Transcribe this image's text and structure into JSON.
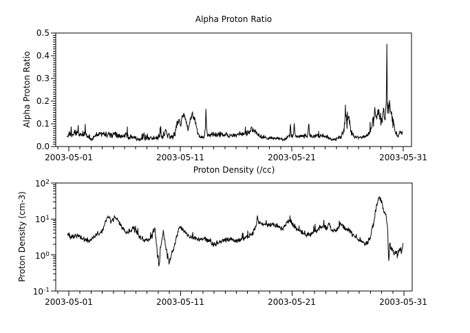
{
  "figure": {
    "background": "#ffffff",
    "line_color": "#000000"
  },
  "chart_data": [
    {
      "type": "line",
      "title": "Alpha Proton Ratio",
      "ylabel": "Alpha Proton Ratio",
      "yscale": "linear",
      "ylim": [
        0.0,
        0.5
      ],
      "xlim_days": [
        -0.17,
        31.74
      ],
      "grid": false,
      "legend": null,
      "y_ticks": [
        {
          "v": 0.0,
          "label": "0.0"
        },
        {
          "v": 0.1,
          "label": "0.1"
        },
        {
          "v": 0.2,
          "label": "0.2"
        },
        {
          "v": 0.3,
          "label": "0.3"
        },
        {
          "v": 0.4,
          "label": "0.4"
        },
        {
          "v": 0.5,
          "label": "0.5"
        }
      ],
      "y_minor_step": 0.01,
      "x_ticks": [
        {
          "day": 1,
          "label": "2003-05-01"
        },
        {
          "day": 11,
          "label": "2003-05-11"
        },
        {
          "day": 21,
          "label": "2003-05-21"
        },
        {
          "day": 31,
          "label": "2003-05-31"
        }
      ],
      "x_minor_step_days": 1,
      "series": [
        {
          "name": "alpha-proton-ratio",
          "color": "#000000",
          "noise_seed": 1234,
          "sample_step_days": 0.03,
          "keypoints_format": [
            "day_of_may_2003",
            "mean_value",
            "noise_amplitude"
          ],
          "keypoints": [
            [
              0.85,
              0.045,
              0.012
            ],
            [
              1.2,
              0.055,
              0.018
            ],
            [
              1.7,
              0.06,
              0.018
            ],
            [
              2.1,
              0.052,
              0.016
            ],
            [
              2.45,
              0.06,
              0.02
            ],
            [
              2.7,
              0.042,
              0.012
            ],
            [
              3.1,
              0.03,
              0.009
            ],
            [
              3.45,
              0.05,
              0.018
            ],
            [
              3.9,
              0.058,
              0.016
            ],
            [
              4.4,
              0.055,
              0.018
            ],
            [
              4.9,
              0.048,
              0.014
            ],
            [
              5.3,
              0.06,
              0.025
            ],
            [
              5.65,
              0.044,
              0.012
            ],
            [
              6.3,
              0.05,
              0.02
            ],
            [
              6.9,
              0.042,
              0.013
            ],
            [
              7.4,
              0.03,
              0.01
            ],
            [
              7.75,
              0.05,
              0.028
            ],
            [
              8.1,
              0.038,
              0.012
            ],
            [
              8.8,
              0.036,
              0.011
            ],
            [
              9.4,
              0.05,
              0.022
            ],
            [
              9.8,
              0.055,
              0.028
            ],
            [
              10.15,
              0.04,
              0.014
            ],
            [
              10.5,
              0.05,
              0.02
            ],
            [
              10.7,
              0.1,
              0.028
            ],
            [
              10.85,
              0.12,
              0.025
            ],
            [
              11.0,
              0.095,
              0.02
            ],
            [
              11.2,
              0.13,
              0.02
            ],
            [
              11.4,
              0.142,
              0.015
            ],
            [
              11.55,
              0.105,
              0.02
            ],
            [
              11.7,
              0.08,
              0.015
            ],
            [
              11.9,
              0.125,
              0.02
            ],
            [
              12.1,
              0.138,
              0.018
            ],
            [
              12.35,
              0.112,
              0.02
            ],
            [
              12.55,
              0.06,
              0.015
            ],
            [
              12.75,
              0.04,
              0.011
            ],
            [
              13.2,
              0.042,
              0.012
            ],
            [
              13.26,
              0.09,
              0.01
            ],
            [
              13.3,
              0.168,
              0.005
            ],
            [
              13.36,
              0.08,
              0.01
            ],
            [
              13.45,
              0.045,
              0.012
            ],
            [
              14.0,
              0.052,
              0.015
            ],
            [
              14.6,
              0.055,
              0.015
            ],
            [
              15.2,
              0.05,
              0.014
            ],
            [
              15.8,
              0.048,
              0.013
            ],
            [
              16.4,
              0.052,
              0.015
            ],
            [
              17.0,
              0.06,
              0.016
            ],
            [
              17.45,
              0.078,
              0.016
            ],
            [
              17.75,
              0.062,
              0.014
            ],
            [
              18.2,
              0.042,
              0.011
            ],
            [
              18.8,
              0.035,
              0.01
            ],
            [
              19.4,
              0.036,
              0.01
            ],
            [
              19.9,
              0.038,
              0.011
            ],
            [
              20.3,
              0.028,
              0.009
            ],
            [
              20.6,
              0.04,
              0.013
            ],
            [
              20.82,
              0.048,
              0.015
            ],
            [
              20.88,
              0.105,
              0.006
            ],
            [
              20.94,
              0.048,
              0.012
            ],
            [
              21.15,
              0.046,
              0.012
            ],
            [
              21.22,
              0.1,
              0.006
            ],
            [
              21.3,
              0.046,
              0.012
            ],
            [
              21.9,
              0.044,
              0.012
            ],
            [
              22.4,
              0.048,
              0.014
            ],
            [
              22.52,
              0.095,
              0.006
            ],
            [
              22.62,
              0.046,
              0.012
            ],
            [
              23.1,
              0.046,
              0.012
            ],
            [
              23.6,
              0.05,
              0.013
            ],
            [
              24.1,
              0.044,
              0.012
            ],
            [
              24.6,
              0.028,
              0.008
            ],
            [
              25.0,
              0.033,
              0.01
            ],
            [
              25.4,
              0.042,
              0.013
            ],
            [
              25.65,
              0.06,
              0.02
            ],
            [
              25.82,
              0.135,
              0.035
            ],
            [
              25.95,
              0.095,
              0.035
            ],
            [
              26.1,
              0.14,
              0.03
            ],
            [
              26.3,
              0.07,
              0.02
            ],
            [
              26.55,
              0.045,
              0.012
            ],
            [
              27.0,
              0.04,
              0.011
            ],
            [
              27.5,
              0.044,
              0.012
            ],
            [
              27.9,
              0.058,
              0.016
            ],
            [
              28.2,
              0.085,
              0.03
            ],
            [
              28.45,
              0.155,
              0.05
            ],
            [
              28.62,
              0.115,
              0.04
            ],
            [
              28.8,
              0.165,
              0.05
            ],
            [
              29.0,
              0.11,
              0.035
            ],
            [
              29.2,
              0.15,
              0.05
            ],
            [
              29.38,
              0.125,
              0.04
            ],
            [
              29.48,
              0.17,
              0.05
            ],
            [
              29.53,
              0.44,
              0.02
            ],
            [
              29.58,
              0.16,
              0.05
            ],
            [
              29.75,
              0.175,
              0.05
            ],
            [
              29.95,
              0.155,
              0.045
            ],
            [
              30.1,
              0.1,
              0.03
            ],
            [
              30.3,
              0.06,
              0.015
            ],
            [
              30.55,
              0.05,
              0.013
            ],
            [
              30.75,
              0.065,
              0.018
            ],
            [
              30.92,
              0.055,
              0.014
            ]
          ]
        }
      ]
    },
    {
      "type": "line",
      "title": "Proton Density (/cc)",
      "ylabel": "Proton Density (cm-3)",
      "yscale": "log",
      "ylim": [
        0.1,
        100
      ],
      "xlim_days": [
        -0.17,
        31.74
      ],
      "grid": false,
      "legend": null,
      "y_ticks": [
        {
          "v": 100,
          "base": "10",
          "exp": "2"
        },
        {
          "v": 10,
          "base": "10",
          "exp": "1"
        },
        {
          "v": 1,
          "base": "10",
          "exp": "0"
        },
        {
          "v": 0.1,
          "base": "10",
          "exp": "-1"
        }
      ],
      "x_ticks": [
        {
          "day": 1,
          "label": "2003-05-01"
        },
        {
          "day": 11,
          "label": "2003-05-11"
        },
        {
          "day": 21,
          "label": "2003-05-21"
        },
        {
          "day": 31,
          "label": "2003-05-31"
        }
      ],
      "x_minor_step_days": 1,
      "series": [
        {
          "name": "proton-density",
          "color": "#000000",
          "noise_seed": 777,
          "sample_step_days": 0.03,
          "keypoints_format": [
            "day_of_may_2003",
            "mean_value_cm3",
            "noise_amplitude_log10"
          ],
          "keypoints": [
            [
              0.85,
              3.8,
              0.1
            ],
            [
              1.3,
              3.1,
              0.1
            ],
            [
              1.8,
              3.5,
              0.09
            ],
            [
              2.3,
              3.0,
              0.1
            ],
            [
              2.8,
              2.4,
              0.09
            ],
            [
              3.2,
              3.2,
              0.08
            ],
            [
              3.6,
              3.7,
              0.08
            ],
            [
              4.0,
              4.8,
              0.09
            ],
            [
              4.3,
              8.5,
              0.1
            ],
            [
              4.55,
              13.0,
              0.09
            ],
            [
              4.8,
              7.5,
              0.09
            ],
            [
              5.1,
              11.0,
              0.08
            ],
            [
              5.35,
              9.5,
              0.08
            ],
            [
              5.7,
              6.0,
              0.1
            ],
            [
              6.1,
              4.2,
              0.09
            ],
            [
              6.5,
              4.6,
              0.1
            ],
            [
              6.8,
              5.5,
              0.09
            ],
            [
              7.2,
              3.6,
              0.09
            ],
            [
              7.7,
              2.7,
              0.08
            ],
            [
              8.1,
              2.5,
              0.08
            ],
            [
              8.45,
              3.4,
              0.1
            ],
            [
              8.7,
              6.2,
              0.11
            ],
            [
              8.95,
              1.0,
              0.18
            ],
            [
              9.07,
              0.48,
              0.15
            ],
            [
              9.25,
              2.4,
              0.18
            ],
            [
              9.45,
              4.6,
              0.1
            ],
            [
              9.62,
              2.4,
              0.12
            ],
            [
              9.82,
              0.95,
              0.14
            ],
            [
              10.0,
              0.6,
              0.13
            ],
            [
              10.18,
              1.05,
              0.12
            ],
            [
              10.45,
              1.7,
              0.1
            ],
            [
              10.7,
              3.8,
              0.1
            ],
            [
              10.95,
              6.4,
              0.09
            ],
            [
              11.25,
              4.8,
              0.08
            ],
            [
              11.65,
              3.7,
              0.08
            ],
            [
              12.1,
              3.1,
              0.08
            ],
            [
              12.6,
              2.7,
              0.08
            ],
            [
              13.1,
              2.9,
              0.08
            ],
            [
              13.6,
              2.4,
              0.08
            ],
            [
              13.95,
              1.95,
              0.08
            ],
            [
              14.4,
              2.2,
              0.08
            ],
            [
              14.9,
              2.6,
              0.08
            ],
            [
              15.4,
              2.8,
              0.08
            ],
            [
              15.95,
              2.5,
              0.08
            ],
            [
              16.5,
              2.8,
              0.09
            ],
            [
              17.0,
              3.3,
              0.09
            ],
            [
              17.5,
              4.2,
              0.1
            ],
            [
              17.82,
              8.0,
              0.11
            ],
            [
              17.88,
              13.0,
              0.06
            ],
            [
              17.95,
              8.5,
              0.09
            ],
            [
              18.3,
              7.0,
              0.08
            ],
            [
              18.8,
              6.6,
              0.08
            ],
            [
              19.2,
              7.2,
              0.08
            ],
            [
              19.7,
              6.0,
              0.08
            ],
            [
              20.1,
              5.2,
              0.09
            ],
            [
              20.45,
              7.0,
              0.09
            ],
            [
              20.7,
              9.0,
              0.09
            ],
            [
              21.0,
              7.5,
              0.08
            ],
            [
              21.4,
              5.2,
              0.08
            ],
            [
              21.9,
              4.1,
              0.08
            ],
            [
              22.4,
              3.6,
              0.09
            ],
            [
              22.9,
              4.2,
              0.09
            ],
            [
              23.4,
              5.6,
              0.09
            ],
            [
              23.8,
              6.3,
              0.08
            ],
            [
              24.1,
              5.3,
              0.09
            ],
            [
              24.3,
              8.2,
              0.09
            ],
            [
              24.55,
              4.6,
              0.09
            ],
            [
              25.0,
              5.0,
              0.09
            ],
            [
              25.35,
              7.4,
              0.09
            ],
            [
              25.75,
              5.4,
              0.09
            ],
            [
              26.15,
              4.9,
              0.09
            ],
            [
              26.55,
              3.4,
              0.09
            ],
            [
              26.95,
              2.6,
              0.09
            ],
            [
              27.35,
              2.2,
              0.09
            ],
            [
              27.65,
              2.0,
              0.1
            ],
            [
              27.95,
              2.9,
              0.1
            ],
            [
              28.25,
              6.5,
              0.12
            ],
            [
              28.55,
              22.0,
              0.11
            ],
            [
              28.8,
              42.0,
              0.07
            ],
            [
              29.0,
              30.0,
              0.09
            ],
            [
              29.2,
              17.0,
              0.1
            ],
            [
              29.42,
              11.0,
              0.1
            ],
            [
              29.55,
              5.5,
              0.12
            ],
            [
              29.63,
              0.55,
              0.12
            ],
            [
              29.72,
              1.9,
              0.12
            ],
            [
              29.9,
              1.5,
              0.12
            ],
            [
              30.15,
              1.2,
              0.12
            ],
            [
              30.4,
              1.05,
              0.12
            ],
            [
              30.6,
              1.5,
              0.1
            ],
            [
              30.78,
              1.25,
              0.1
            ],
            [
              30.92,
              2.1,
              0.08
            ]
          ]
        }
      ]
    }
  ]
}
